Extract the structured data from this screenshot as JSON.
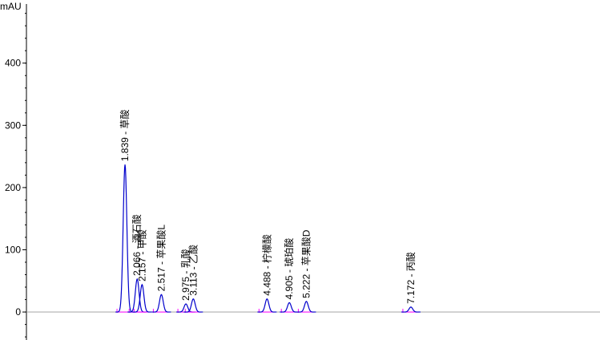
{
  "chart_data": {
    "type": "chromatogram",
    "y_label": "mAU",
    "ylim": [
      -45,
      495
    ],
    "yticks": [
      0,
      100,
      200,
      300,
      400
    ],
    "xlim": [
      0,
      10.7
    ],
    "color": "#0000cc",
    "baseline_color": "#ff00ff",
    "peaks": [
      {
        "time": 1.839,
        "height": 237,
        "label": "1.839 - 草酸"
      },
      {
        "time": 2.066,
        "height": 53,
        "label": "2.066 - 酒石酸"
      },
      {
        "time": 2.157,
        "height": 44,
        "label": "2.157 - 甲酸"
      },
      {
        "time": 2.517,
        "height": 28,
        "label": "2.517 - 苹果酸L"
      },
      {
        "time": 2.975,
        "height": 13,
        "label": "2.975 - 乳酸"
      },
      {
        "time": 3.113,
        "height": 21,
        "label": "3.113 - 乙酸"
      },
      {
        "time": 4.488,
        "height": 21,
        "label": "4.488 - 柠檬酸"
      },
      {
        "time": 4.905,
        "height": 15,
        "label": "4.905 - 琥珀酸"
      },
      {
        "time": 5.222,
        "height": 17,
        "label": "5.222 - 苹果酸D"
      },
      {
        "time": 7.172,
        "height": 8,
        "label": "7.172 - 丙酸"
      }
    ]
  }
}
